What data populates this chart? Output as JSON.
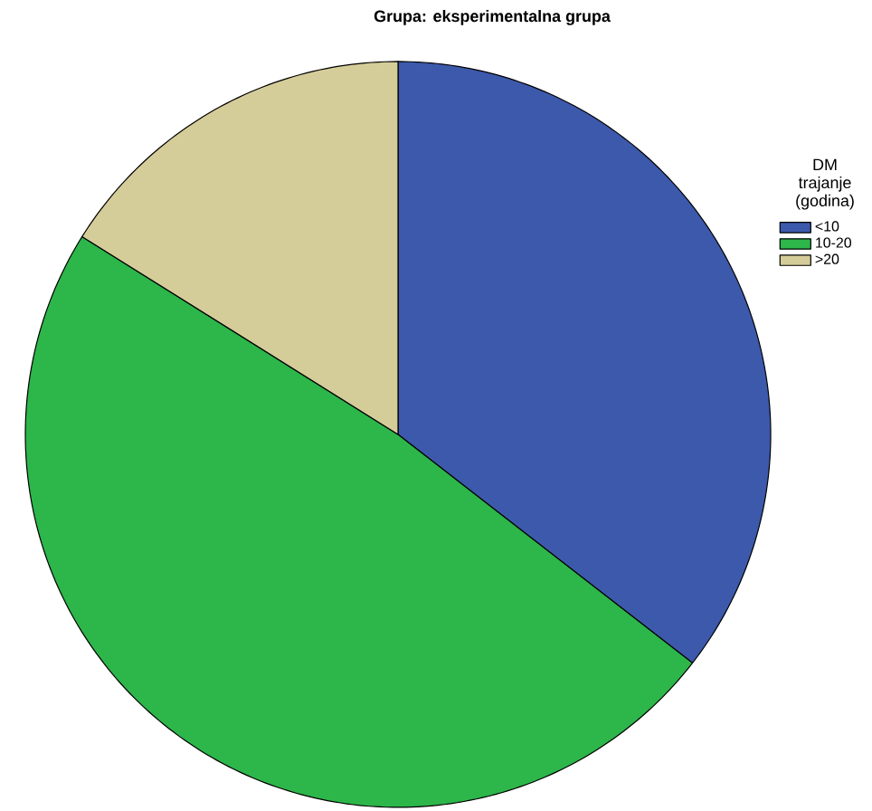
{
  "chart_data": {
    "type": "pie",
    "title": "Grupa: eksperimentalna grupa",
    "legend_title": "DM trajanje (godina)",
    "legend": "top right",
    "categories": [
      "<10",
      "10-20",
      ">20"
    ],
    "values": [
      35.5,
      48.4,
      16.1
    ],
    "colors": [
      "#3d59ab",
      "#2db64a",
      "#d5cd99"
    ]
  }
}
